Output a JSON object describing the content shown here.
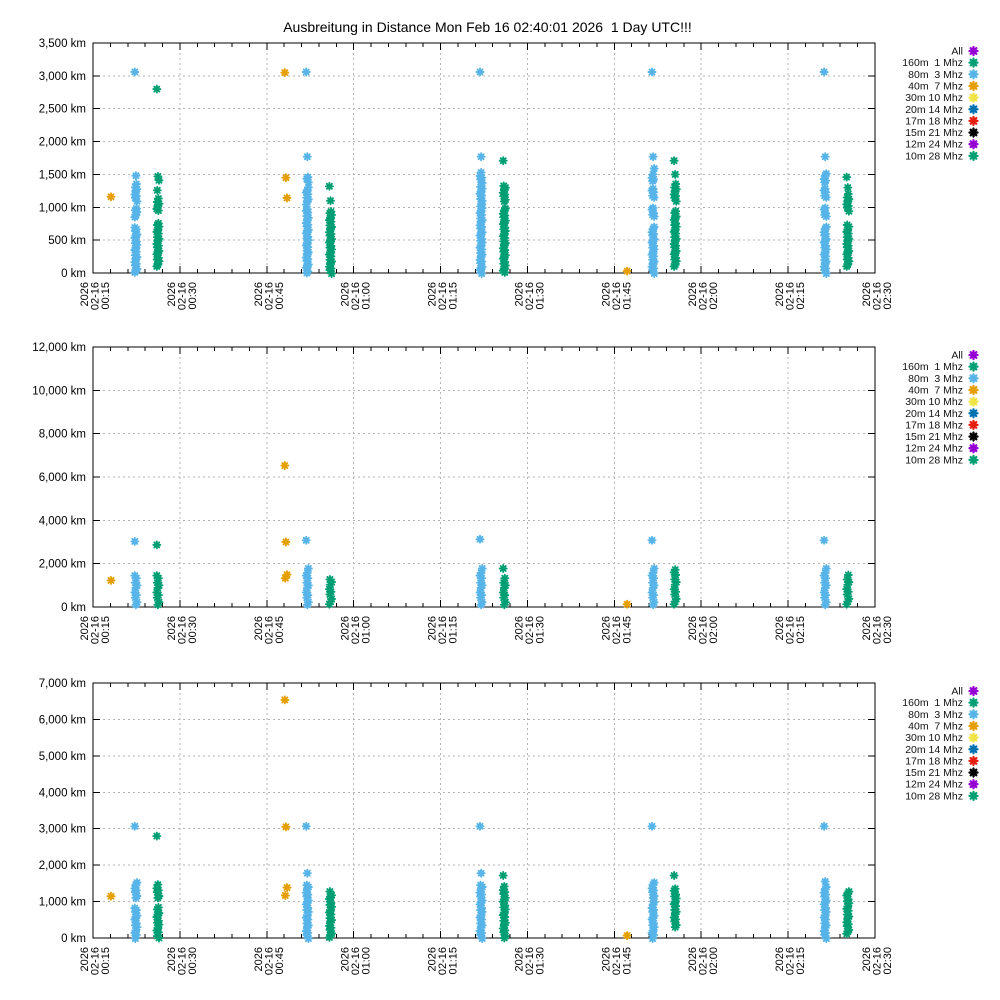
{
  "title": "Ausbreitung in Distance Mon Feb 16 02:40:01 2026  1 Day UTC!!!",
  "legend": [
    {
      "label": "All",
      "color": "#9400d3"
    },
    {
      "label": "160m  1 Mhz",
      "color": "#009e73"
    },
    {
      "label": "80m  3 Mhz",
      "color": "#56b4e9"
    },
    {
      "label": "40m  7 Mhz",
      "color": "#e69f00"
    },
    {
      "label": "30m 10 Mhz",
      "color": "#f0e442"
    },
    {
      "label": "20m 14 Mhz",
      "color": "#0072b2"
    },
    {
      "label": "17m 18 Mhz",
      "color": "#e51e10"
    },
    {
      "label": "15m 21 Mhz",
      "color": "#000000"
    },
    {
      "label": "12m 24 Mhz",
      "color": "#9400d3"
    },
    {
      "label": "10m 28 Mhz",
      "color": "#009e73"
    }
  ],
  "x_axis": {
    "unit": "UTC date-time",
    "range_min": [
      15,
      150
    ],
    "major_step_min": 15,
    "minor_step_min": 3,
    "major_ticks": [
      {
        "t_min": 15,
        "lines": [
          "2026",
          "02-16",
          "00:15"
        ]
      },
      {
        "t_min": 30,
        "lines": [
          "2026",
          "02-16",
          "00:30"
        ]
      },
      {
        "t_min": 45,
        "lines": [
          "2026",
          "02-16",
          "00:45"
        ]
      },
      {
        "t_min": 60,
        "lines": [
          "2026",
          "02-16",
          "01:00"
        ]
      },
      {
        "t_min": 75,
        "lines": [
          "2026",
          "02-16",
          "01:15"
        ]
      },
      {
        "t_min": 90,
        "lines": [
          "2026",
          "02-16",
          "01:30"
        ]
      },
      {
        "t_min": 105,
        "lines": [
          "2026",
          "02-16",
          "01:45"
        ]
      },
      {
        "t_min": 120,
        "lines": [
          "2026",
          "02-16",
          "02:00"
        ]
      },
      {
        "t_min": 135,
        "lines": [
          "2026",
          "02-16",
          "02:15"
        ]
      },
      {
        "t_min": 150,
        "lines": [
          "2026",
          "02-16",
          "02:30"
        ]
      }
    ]
  },
  "chart_data": [
    {
      "type": "scatter",
      "name": "distance-top",
      "grid": true,
      "legend_position": "right",
      "ylim": [
        0,
        3500
      ],
      "ytick_step": 500,
      "ytick_labels": [
        "0 km",
        "500 km",
        "1,000 km",
        "1,500 km",
        "2,000 km",
        "2,500 km",
        "3,000 km",
        "3,500 km"
      ],
      "column_step_km": 35,
      "clusters": [
        {
          "band": "40m  7 Mhz",
          "time": "00:18",
          "t_min": 18.3,
          "points": [
            1150
          ],
          "segments": []
        },
        {
          "band": "80m  3 Mhz",
          "time": "00:22",
          "t_min": 22.4,
          "points": [
            3050,
            1480
          ],
          "segments": [
            [
              1100,
              1350
            ],
            [
              850,
              1000
            ],
            [
              0,
              700
            ]
          ]
        },
        {
          "band": "10m 28 Mhz",
          "time": "00:26",
          "t_min": 26.2,
          "points": [
            2790,
            1470,
            1420,
            1250
          ],
          "segments": [
            [
              950,
              1150
            ],
            [
              100,
              780
            ]
          ]
        },
        {
          "band": "40m  7 Mhz",
          "time": "00:48",
          "t_min": 48.3,
          "points": [
            3040,
            1450,
            1150
          ],
          "segments": []
        },
        {
          "band": "80m  3 Mhz",
          "time": "00:52",
          "t_min": 52,
          "points": [
            3050,
            1770
          ],
          "segments": [
            [
              1390,
              1490
            ],
            [
              1050,
              1300
            ],
            [
              0,
              1000
            ]
          ]
        },
        {
          "band": "10m 28 Mhz",
          "time": "00:56",
          "t_min": 56,
          "points": [
            1310,
            1100
          ],
          "segments": [
            [
              0,
              950
            ]
          ]
        },
        {
          "band": "80m  3 Mhz",
          "time": "01:22",
          "t_min": 82,
          "points": [
            3050,
            1770
          ],
          "segments": [
            [
              1380,
              1520
            ],
            [
              1100,
              1310
            ],
            [
              0,
              1050
            ]
          ]
        },
        {
          "band": "10m 28 Mhz",
          "time": "01:26",
          "t_min": 86,
          "points": [
            1700
          ],
          "segments": [
            [
              1090,
              1350
            ],
            [
              0,
              1000
            ]
          ]
        },
        {
          "band": "40m  7 Mhz",
          "time": "01:47",
          "t_min": 107.4,
          "points": [
            20
          ],
          "segments": []
        },
        {
          "band": "80m  3 Mhz",
          "time": "01:52",
          "t_min": 111.7,
          "points": [
            3050,
            1770,
            1600
          ],
          "segments": [
            [
              1390,
              1510
            ],
            [
              1150,
              1300
            ],
            [
              850,
              1000
            ],
            [
              0,
              700
            ]
          ]
        },
        {
          "band": "10m 28 Mhz",
          "time": "01:55",
          "t_min": 115.5,
          "points": [
            1700,
            1500
          ],
          "segments": [
            [
              1100,
              1350
            ],
            [
              100,
              950
            ]
          ]
        },
        {
          "band": "80m  3 Mhz",
          "time": "02:21",
          "t_min": 141.4,
          "points": [
            3050,
            1770,
            1520
          ],
          "segments": [
            [
              1370,
              1480
            ],
            [
              1150,
              1300
            ],
            [
              850,
              1000
            ],
            [
              0,
              700
            ]
          ]
        },
        {
          "band": "10m 28 Mhz",
          "time": "02:25",
          "t_min": 145.3,
          "points": [
            1450,
            1300
          ],
          "segments": [
            [
              950,
              1200
            ],
            [
              100,
              750
            ]
          ]
        }
      ]
    },
    {
      "type": "scatter",
      "name": "distance-middle",
      "grid": true,
      "legend_position": "right",
      "ylim": [
        0,
        12000
      ],
      "ytick_step": 2000,
      "ytick_labels": [
        "0 km",
        "2,000 km",
        "4,000 km",
        "6,000 km",
        "8,000 km",
        "10,000 km",
        "12,000 km"
      ],
      "column_step_km": 150,
      "clusters": [
        {
          "band": "40m  7 Mhz",
          "time": "00:18",
          "t_min": 18.3,
          "points": [
            1200
          ],
          "segments": []
        },
        {
          "band": "80m  3 Mhz",
          "time": "00:22",
          "t_min": 22.4,
          "points": [
            3000
          ],
          "segments": [
            [
              100,
              1500
            ]
          ]
        },
        {
          "band": "10m 28 Mhz",
          "time": "00:26",
          "t_min": 26.2,
          "points": [
            2840
          ],
          "segments": [
            [
              100,
              1450
            ]
          ]
        },
        {
          "band": "40m  7 Mhz",
          "time": "00:48",
          "t_min": 48.3,
          "points": [
            6500,
            3000,
            1520,
            1300
          ],
          "segments": []
        },
        {
          "band": "80m  3 Mhz",
          "time": "00:52",
          "t_min": 52,
          "points": [
            3050
          ],
          "segments": [
            [
              100,
              1800
            ]
          ]
        },
        {
          "band": "10m 28 Mhz",
          "time": "00:56",
          "t_min": 56,
          "points": [],
          "segments": [
            [
              100,
              1350
            ]
          ]
        },
        {
          "band": "80m  3 Mhz",
          "time": "01:22",
          "t_min": 82,
          "points": [
            3100
          ],
          "segments": [
            [
              100,
              1800
            ]
          ]
        },
        {
          "band": "10m 28 Mhz",
          "time": "01:26",
          "t_min": 86,
          "points": [
            1750
          ],
          "segments": [
            [
              100,
              1400
            ]
          ]
        },
        {
          "band": "40m  7 Mhz",
          "time": "01:47",
          "t_min": 107.4,
          "points": [
            100
          ],
          "segments": []
        },
        {
          "band": "80m  3 Mhz",
          "time": "01:52",
          "t_min": 111.7,
          "points": [
            3050
          ],
          "segments": [
            [
              100,
              1800
            ]
          ]
        },
        {
          "band": "10m 28 Mhz",
          "time": "01:55",
          "t_min": 115.5,
          "points": [],
          "segments": [
            [
              100,
              1850
            ]
          ]
        },
        {
          "band": "80m  3 Mhz",
          "time": "02:21",
          "t_min": 141.4,
          "points": [
            3050
          ],
          "segments": [
            [
              100,
              1800
            ]
          ]
        },
        {
          "band": "10m 28 Mhz",
          "time": "02:25",
          "t_min": 145.3,
          "points": [],
          "segments": [
            [
              100,
              1500
            ]
          ]
        }
      ]
    },
    {
      "type": "scatter",
      "name": "distance-bottom",
      "grid": true,
      "legend_position": "right",
      "ylim": [
        0,
        7000
      ],
      "ytick_step": 1000,
      "ytick_labels": [
        "0 km",
        "1,000 km",
        "2,000 km",
        "3,000 km",
        "4,000 km",
        "5,000 km",
        "6,000 km",
        "7,000 km"
      ],
      "column_step_km": 70,
      "clusters": [
        {
          "band": "40m  7 Mhz",
          "time": "00:18",
          "t_min": 18.3,
          "points": [
            1130
          ],
          "segments": []
        },
        {
          "band": "80m  3 Mhz",
          "time": "00:22",
          "t_min": 22.4,
          "points": [
            3050
          ],
          "segments": [
            [
              1100,
              1550
            ],
            [
              0,
              900
            ]
          ]
        },
        {
          "band": "10m 28 Mhz",
          "time": "00:26",
          "t_min": 26.2,
          "points": [
            2780
          ],
          "segments": [
            [
              1100,
              1500
            ],
            [
              0,
              900
            ]
          ]
        },
        {
          "band": "40m  7 Mhz",
          "time": "00:48",
          "t_min": 48.3,
          "points": [
            6520,
            3050,
            1400,
            1150
          ],
          "segments": []
        },
        {
          "band": "80m  3 Mhz",
          "time": "00:52",
          "t_min": 52,
          "points": [
            3050,
            1780
          ],
          "segments": [
            [
              0,
              1500
            ]
          ]
        },
        {
          "band": "10m 28 Mhz",
          "time": "00:56",
          "t_min": 56,
          "points": [],
          "segments": [
            [
              0,
              1300
            ]
          ]
        },
        {
          "band": "80m  3 Mhz",
          "time": "01:22",
          "t_min": 82,
          "points": [
            3050,
            1780
          ],
          "segments": [
            [
              0,
              1500
            ]
          ]
        },
        {
          "band": "10m 28 Mhz",
          "time": "01:26",
          "t_min": 86,
          "points": [
            1700
          ],
          "segments": [
            [
              0,
              1400
            ]
          ]
        },
        {
          "band": "40m  7 Mhz",
          "time": "01:47",
          "t_min": 107.4,
          "points": [
            50
          ],
          "segments": []
        },
        {
          "band": "80m  3 Mhz",
          "time": "01:52",
          "t_min": 111.7,
          "points": [
            3050
          ],
          "segments": [
            [
              1100,
              1550
            ],
            [
              0,
              1000
            ]
          ]
        },
        {
          "band": "10m 28 Mhz",
          "time": "01:55",
          "t_min": 115.5,
          "points": [
            1700
          ],
          "segments": [
            [
              300,
              1400
            ]
          ]
        },
        {
          "band": "80m  3 Mhz",
          "time": "02:21",
          "t_min": 141.4,
          "points": [
            3050,
            1550
          ],
          "segments": [
            [
              0,
              1450
            ]
          ]
        },
        {
          "band": "10m 28 Mhz",
          "time": "02:25",
          "t_min": 145.3,
          "points": [],
          "segments": [
            [
              100,
              1350
            ]
          ]
        }
      ]
    }
  ]
}
